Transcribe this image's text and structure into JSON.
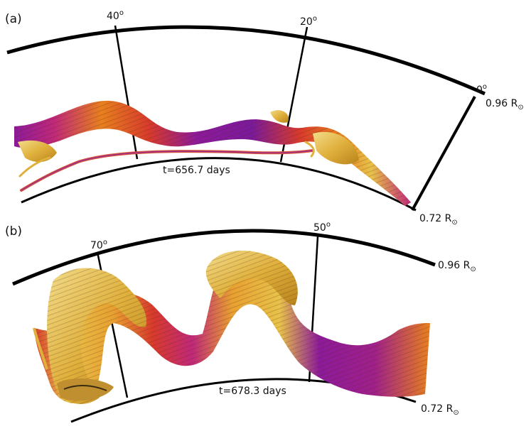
{
  "colors": {
    "line": "#000000",
    "purple": "#8c1a9a",
    "magenta": "#c0287a",
    "red": "#d83a2c",
    "orange": "#e8801e",
    "yellow": "#e8c24a",
    "pale_yellow": "#efd682"
  },
  "panel_a": {
    "label": "(a)",
    "lon_high": "40",
    "lon_mid": "20",
    "lon_zero": "0",
    "deg": "o",
    "r_outer": "0.96 R",
    "r_inner": "0.72 R",
    "sun_symbol": "⊙",
    "time": "t=656.7 days"
  },
  "panel_b": {
    "label": "(b)",
    "lon_high": "70",
    "lon_mid": "50",
    "deg": "o",
    "r_outer": "0.96 R",
    "r_inner": "0.72 R",
    "sun_symbol": "⊙",
    "time": "t=678.3 days"
  }
}
